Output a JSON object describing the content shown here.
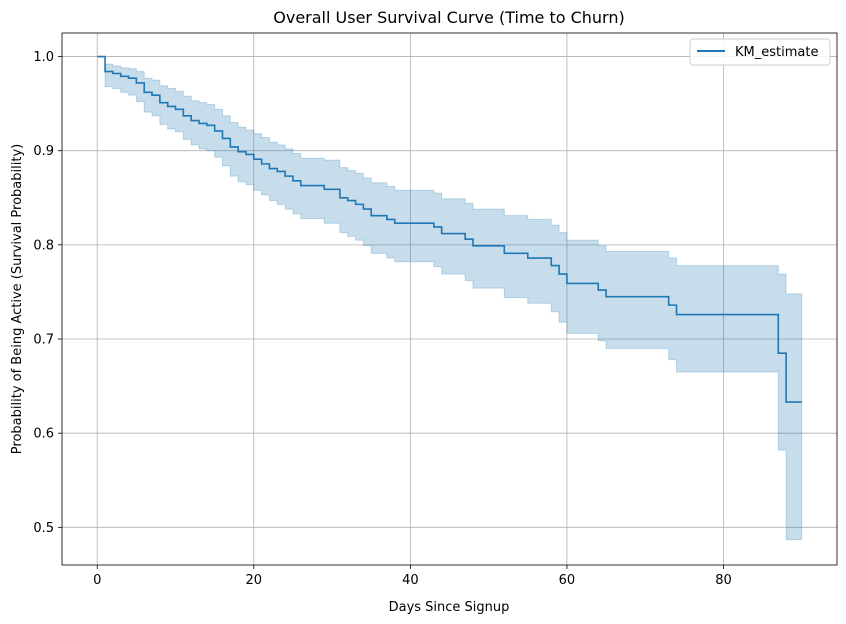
{
  "chart_data": {
    "type": "line",
    "title": "Overall User Survival Curve (Time to Churn)",
    "xlabel": "Days Since Signup",
    "ylabel": "Probability of Being Active (Survival Probability)",
    "xlim": [
      -4.5,
      94.5
    ],
    "ylim": [
      0.46,
      1.025
    ],
    "xticks": [
      0,
      20,
      40,
      60,
      80
    ],
    "yticks": [
      0.5,
      0.6,
      0.7,
      0.8,
      0.9,
      1.0
    ],
    "xtick_labels": [
      "0",
      "20",
      "40",
      "60",
      "80"
    ],
    "ytick_labels": [
      "0.5",
      "0.6",
      "0.7",
      "0.8",
      "0.9",
      "1.0"
    ],
    "grid": true,
    "legend": {
      "placement": "top-right",
      "entries": [
        "KM_estimate"
      ]
    },
    "series": [
      {
        "name": "KM_estimate",
        "step": "post",
        "color": "#1f77b4",
        "ci_color": "#1f77b4",
        "points": [
          [
            0,
            1.0,
            1.0,
            1.0
          ],
          [
            1,
            0.984,
            0.968,
            0.992
          ],
          [
            2,
            0.982,
            0.966,
            0.99
          ],
          [
            3,
            0.979,
            0.962,
            0.988
          ],
          [
            4,
            0.977,
            0.959,
            0.987
          ],
          [
            5,
            0.972,
            0.952,
            0.984
          ],
          [
            6,
            0.962,
            0.941,
            0.977
          ],
          [
            7,
            0.959,
            0.937,
            0.975
          ],
          [
            8,
            0.951,
            0.928,
            0.969
          ],
          [
            9,
            0.947,
            0.923,
            0.966
          ],
          [
            10,
            0.944,
            0.92,
            0.963
          ],
          [
            11,
            0.937,
            0.912,
            0.958
          ],
          [
            12,
            0.932,
            0.906,
            0.953
          ],
          [
            13,
            0.929,
            0.902,
            0.951
          ],
          [
            14,
            0.927,
            0.9,
            0.949
          ],
          [
            15,
            0.921,
            0.893,
            0.944
          ],
          [
            16,
            0.913,
            0.884,
            0.937
          ],
          [
            17,
            0.904,
            0.873,
            0.93
          ],
          [
            18,
            0.899,
            0.867,
            0.925
          ],
          [
            19,
            0.896,
            0.864,
            0.922
          ],
          [
            20,
            0.891,
            0.858,
            0.918
          ],
          [
            21,
            0.886,
            0.853,
            0.914
          ],
          [
            22,
            0.881,
            0.847,
            0.909
          ],
          [
            23,
            0.878,
            0.843,
            0.906
          ],
          [
            24,
            0.873,
            0.838,
            0.902
          ],
          [
            25,
            0.868,
            0.833,
            0.897
          ],
          [
            26,
            0.863,
            0.828,
            0.892
          ],
          [
            29,
            0.859,
            0.823,
            0.89
          ],
          [
            31,
            0.85,
            0.813,
            0.882
          ],
          [
            32,
            0.847,
            0.809,
            0.879
          ],
          [
            33,
            0.843,
            0.805,
            0.876
          ],
          [
            34,
            0.838,
            0.799,
            0.871
          ],
          [
            35,
            0.831,
            0.791,
            0.866
          ],
          [
            37,
            0.827,
            0.786,
            0.862
          ],
          [
            38,
            0.823,
            0.782,
            0.858
          ],
          [
            43,
            0.819,
            0.777,
            0.855
          ],
          [
            44,
            0.812,
            0.769,
            0.849
          ],
          [
            47,
            0.806,
            0.762,
            0.844
          ],
          [
            48,
            0.799,
            0.754,
            0.838
          ],
          [
            52,
            0.791,
            0.744,
            0.831
          ],
          [
            55,
            0.786,
            0.738,
            0.827
          ],
          [
            58,
            0.778,
            0.729,
            0.821
          ],
          [
            59,
            0.769,
            0.718,
            0.813
          ],
          [
            60,
            0.759,
            0.706,
            0.805
          ],
          [
            64,
            0.752,
            0.698,
            0.799
          ],
          [
            65,
            0.745,
            0.69,
            0.793
          ],
          [
            73,
            0.736,
            0.678,
            0.786
          ],
          [
            74,
            0.726,
            0.665,
            0.778
          ],
          [
            87,
            0.685,
            0.582,
            0.769
          ],
          [
            88,
            0.633,
            0.487,
            0.748
          ],
          [
            90,
            0.633,
            0.487,
            0.748
          ]
        ]
      }
    ]
  }
}
